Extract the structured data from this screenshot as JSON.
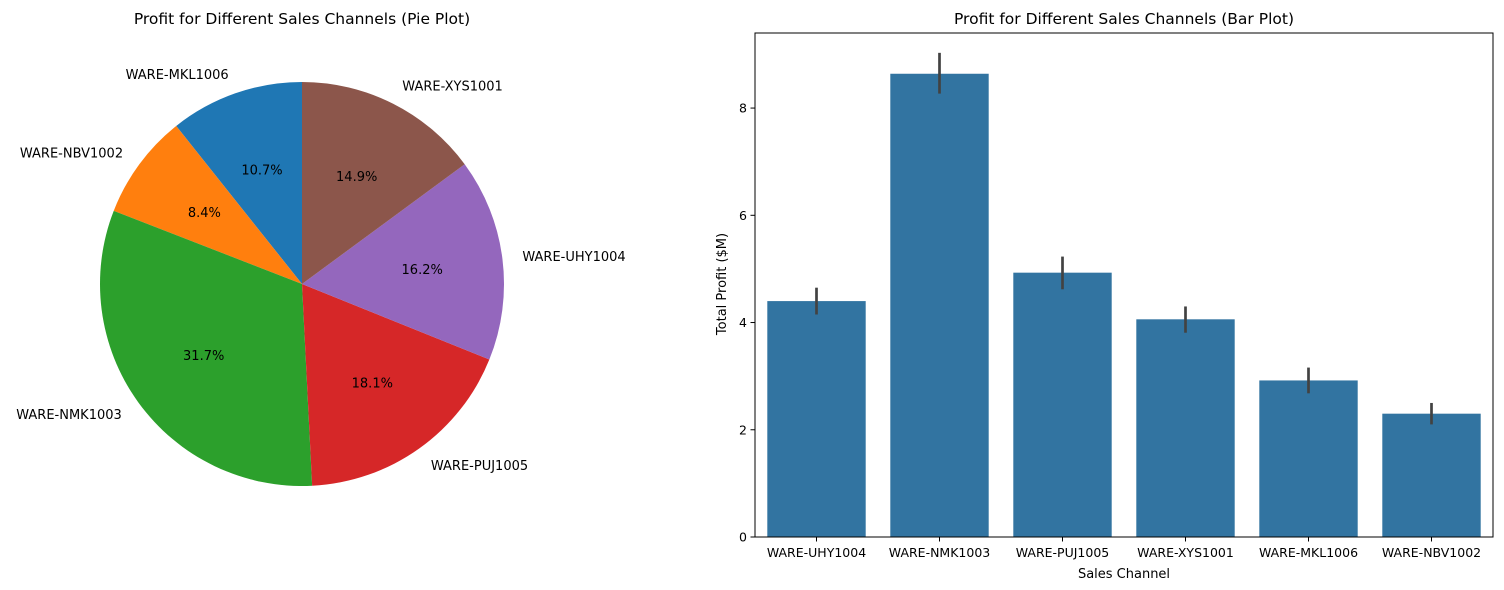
{
  "chart_data": [
    {
      "type": "pie",
      "title": "Profit for Different Sales Channels (Pie Plot)",
      "start_angle_deg": 90,
      "direction": "counterclockwise",
      "slices": [
        {
          "label": "WARE-MKL1006",
          "value": 10.7,
          "pct_label": "10.7%",
          "color": "#1f77b4"
        },
        {
          "label": "WARE-NBV1002",
          "value": 8.4,
          "pct_label": "8.4%",
          "color": "#ff7f0e"
        },
        {
          "label": "WARE-NMK1003",
          "value": 31.7,
          "pct_label": "31.7%",
          "color": "#2ca02c"
        },
        {
          "label": "WARE-PUJ1005",
          "value": 18.1,
          "pct_label": "18.1%",
          "color": "#d62728"
        },
        {
          "label": "WARE-UHY1004",
          "value": 16.2,
          "pct_label": "16.2%",
          "color": "#9467bd"
        },
        {
          "label": "WARE-XYS1001",
          "value": 14.9,
          "pct_label": "14.9%",
          "color": "#8c564b"
        }
      ]
    },
    {
      "type": "bar",
      "title": "Profit for Different Sales Channels (Bar Plot)",
      "xlabel": "Sales Channel",
      "ylabel": "Total Profit ($M)",
      "categories": [
        "WARE-UHY1004",
        "WARE-NMK1003",
        "WARE-PUJ1005",
        "WARE-XYS1001",
        "WARE-MKL1006",
        "WARE-NBV1002"
      ],
      "values": [
        4.4,
        8.64,
        4.93,
        4.06,
        2.92,
        2.3
      ],
      "error_low": [
        4.15,
        8.27,
        4.62,
        3.81,
        2.68,
        2.1
      ],
      "error_high": [
        4.65,
        9.03,
        5.23,
        4.3,
        3.16,
        2.5
      ],
      "ylim": [
        0,
        9.4
      ],
      "yticks": [
        0,
        2,
        4,
        6,
        8
      ],
      "bar_color": "#3274a1",
      "error_color": "#424242",
      "grid": false
    }
  ]
}
